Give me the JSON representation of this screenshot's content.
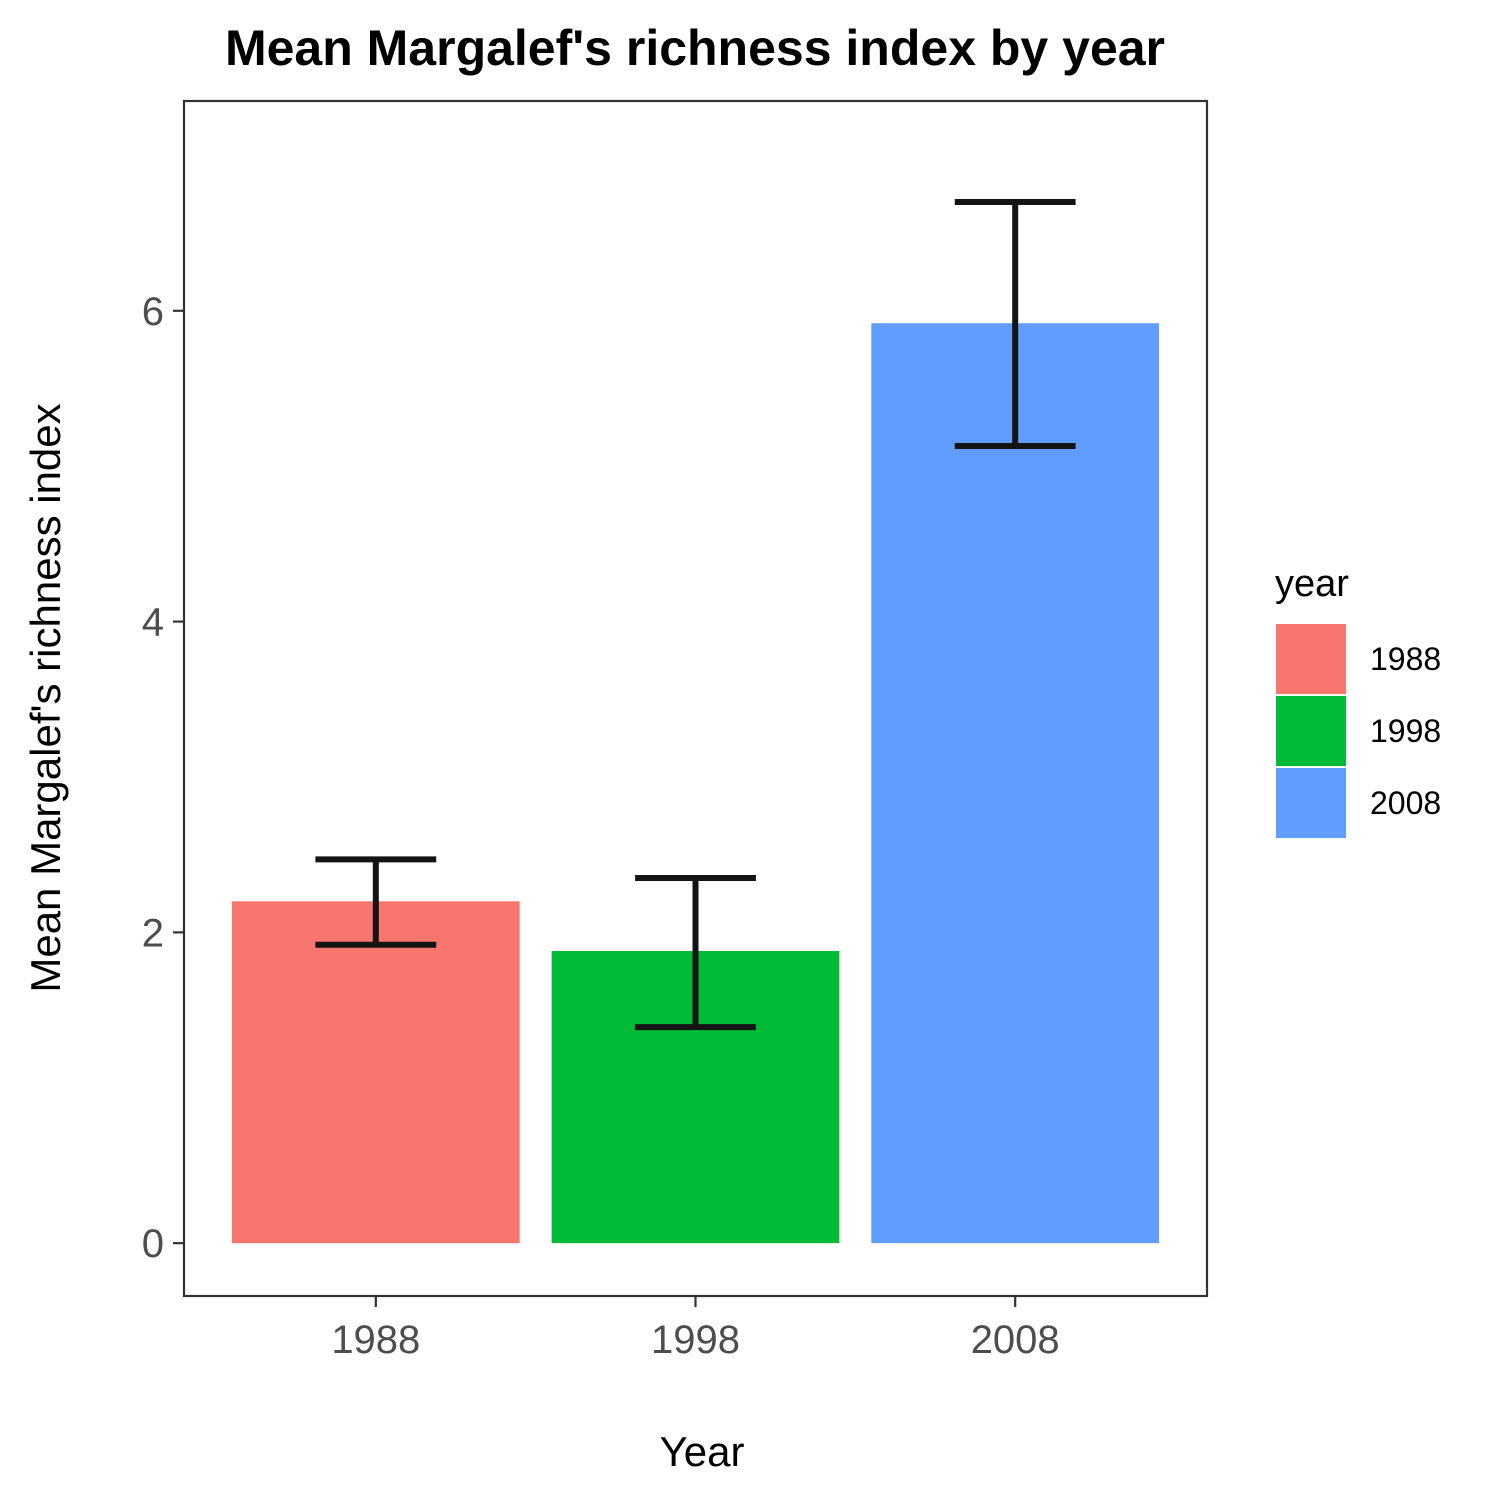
{
  "chart_data": {
    "type": "bar",
    "title": "Mean Margalef's richness index by year",
    "xlabel": "Year",
    "ylabel": "Mean Margalef's richness index",
    "categories": [
      "1988",
      "1998",
      "2008"
    ],
    "values": [
      2.2,
      1.88,
      5.92
    ],
    "error_bars": [
      {
        "lower": 1.92,
        "upper": 2.47
      },
      {
        "lower": 1.39,
        "upper": 2.35
      },
      {
        "lower": 5.13,
        "upper": 6.7
      }
    ],
    "colors": [
      "#F8766D",
      "#00BA38",
      "#619CFF"
    ],
    "y_ticks": [
      0,
      2,
      4,
      6
    ],
    "y_tick_labels": [
      "0",
      "2",
      "4",
      "6"
    ],
    "ylim": [
      -0.34,
      7.35
    ],
    "grid": false,
    "legend": {
      "title": "year",
      "entries": [
        "1988",
        "1998",
        "2008"
      ],
      "placement": "right"
    }
  }
}
